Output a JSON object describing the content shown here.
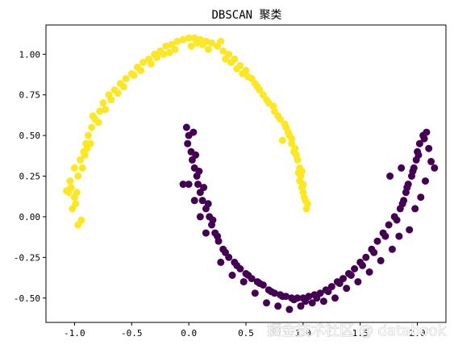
{
  "chart_data": {
    "type": "scatter",
    "title": "DBSCAN 聚类",
    "xlabel": "",
    "ylabel": "",
    "xlim": [
      -1.25,
      2.25
    ],
    "ylim": [
      -0.65,
      1.18
    ],
    "xticks": [
      -1.0,
      -0.5,
      0.0,
      0.5,
      1.0,
      1.5,
      2.0
    ],
    "xtick_labels": [
      "-1.0",
      "-0.5",
      "0.0",
      "0.5",
      "1.0",
      "1.5",
      "2.0"
    ],
    "yticks": [
      -0.5,
      -0.25,
      0.0,
      0.25,
      0.5,
      0.75,
      1.0
    ],
    "ytick_labels": [
      "-0.50",
      "-0.25",
      "0.00",
      "0.25",
      "0.50",
      "0.75",
      "1.00"
    ],
    "grid": false,
    "legend": "none",
    "series": [
      {
        "color": "#fde725",
        "points": [
          [
            -1.02,
            0.05
          ],
          [
            -1.0,
            0.12
          ],
          [
            -0.98,
            0.15
          ],
          [
            -1.03,
            0.18
          ],
          [
            -0.97,
            0.25
          ],
          [
            -1.0,
            0.3
          ],
          [
            -0.95,
            0.35
          ],
          [
            -0.92,
            0.4
          ],
          [
            -0.9,
            0.45
          ],
          [
            -0.88,
            0.5
          ],
          [
            -0.85,
            0.55
          ],
          [
            -0.82,
            0.6
          ],
          [
            -0.78,
            0.65
          ],
          [
            -0.75,
            0.7
          ],
          [
            -0.7,
            0.75
          ],
          [
            -0.65,
            0.78
          ],
          [
            -0.6,
            0.82
          ],
          [
            -0.55,
            0.85
          ],
          [
            -0.5,
            0.88
          ],
          [
            -0.45,
            0.92
          ],
          [
            -0.4,
            0.95
          ],
          [
            -0.35,
            0.97
          ],
          [
            -0.3,
            1.0
          ],
          [
            -0.25,
            1.02
          ],
          [
            -0.2,
            1.05
          ],
          [
            -0.15,
            1.06
          ],
          [
            -0.1,
            1.08
          ],
          [
            -0.05,
            1.09
          ],
          [
            0.0,
            1.1
          ],
          [
            0.05,
            1.1
          ],
          [
            0.1,
            1.09
          ],
          [
            0.15,
            1.08
          ],
          [
            0.2,
            1.07
          ],
          [
            0.25,
            1.05
          ],
          [
            0.3,
            1.02
          ],
          [
            0.35,
            1.0
          ],
          [
            0.4,
            0.97
          ],
          [
            0.45,
            0.93
          ],
          [
            0.5,
            0.9
          ],
          [
            0.55,
            0.85
          ],
          [
            0.6,
            0.8
          ],
          [
            0.65,
            0.75
          ],
          [
            0.7,
            0.7
          ],
          [
            0.75,
            0.65
          ],
          [
            0.8,
            0.6
          ],
          [
            0.85,
            0.55
          ],
          [
            0.88,
            0.5
          ],
          [
            0.9,
            0.45
          ],
          [
            0.92,
            0.4
          ],
          [
            0.95,
            0.35
          ],
          [
            0.97,
            0.3
          ],
          [
            0.98,
            0.25
          ],
          [
            1.0,
            0.2
          ],
          [
            1.0,
            0.15
          ],
          [
            1.02,
            0.1
          ],
          [
            1.03,
            0.05
          ],
          [
            -1.05,
            0.15
          ],
          [
            -0.93,
            0.3
          ],
          [
            -0.86,
            0.45
          ],
          [
            -0.79,
            0.58
          ],
          [
            -0.68,
            0.72
          ],
          [
            -0.57,
            0.8
          ],
          [
            -0.42,
            0.9
          ],
          [
            -0.28,
            0.98
          ],
          [
            -0.12,
            1.03
          ],
          [
            0.02,
            1.05
          ],
          [
            0.17,
            1.03
          ],
          [
            0.32,
            0.97
          ],
          [
            0.47,
            0.88
          ],
          [
            0.62,
            0.78
          ],
          [
            0.74,
            0.68
          ],
          [
            0.84,
            0.57
          ],
          [
            0.9,
            0.48
          ],
          [
            0.94,
            0.38
          ],
          [
            0.96,
            0.27
          ],
          [
            0.99,
            0.18
          ],
          [
            -0.99,
            0.08
          ],
          [
            -0.91,
            0.38
          ],
          [
            -0.73,
            0.66
          ],
          [
            -0.48,
            0.87
          ],
          [
            -0.22,
            1.0
          ],
          [
            0.07,
            1.07
          ],
          [
            0.37,
            0.95
          ],
          [
            0.58,
            0.82
          ],
          [
            0.78,
            0.62
          ],
          [
            0.93,
            0.42
          ],
          [
            1.01,
            0.12
          ],
          [
            -1.07,
            0.16
          ],
          [
            -0.89,
            0.42
          ],
          [
            -0.62,
            0.76
          ],
          [
            -0.33,
            0.94
          ],
          [
            0.12,
            1.06
          ],
          [
            0.42,
            0.91
          ],
          [
            0.68,
            0.72
          ],
          [
            0.87,
            0.52
          ],
          [
            0.97,
            0.22
          ],
          [
            -0.94,
            -0.02
          ],
          [
            -0.97,
            -0.05
          ],
          [
            -0.84,
            0.62
          ],
          [
            0.28,
            1.08
          ],
          [
            -0.17,
            1.01
          ],
          [
            0.52,
            0.86
          ],
          [
            0.82,
            0.47
          ],
          [
            0.99,
            0.28
          ],
          [
            1.04,
            0.08
          ],
          [
            -1.04,
            0.22
          ]
        ]
      },
      {
        "color": "#440154",
        "points": [
          [
            -0.02,
            0.55
          ],
          [
            0.0,
            0.5
          ],
          [
            -0.01,
            0.45
          ],
          [
            0.02,
            0.4
          ],
          [
            0.03,
            0.35
          ],
          [
            0.05,
            0.3
          ],
          [
            0.07,
            0.25
          ],
          [
            0.08,
            0.2
          ],
          [
            0.1,
            0.15
          ],
          [
            0.12,
            0.1
          ],
          [
            0.15,
            0.05
          ],
          [
            0.18,
            0.0
          ],
          [
            0.2,
            -0.05
          ],
          [
            0.23,
            -0.1
          ],
          [
            0.26,
            -0.15
          ],
          [
            0.3,
            -0.2
          ],
          [
            0.35,
            -0.25
          ],
          [
            0.4,
            -0.28
          ],
          [
            0.45,
            -0.32
          ],
          [
            0.5,
            -0.35
          ],
          [
            0.55,
            -0.38
          ],
          [
            0.6,
            -0.4
          ],
          [
            0.65,
            -0.42
          ],
          [
            0.7,
            -0.45
          ],
          [
            0.75,
            -0.47
          ],
          [
            0.8,
            -0.48
          ],
          [
            0.85,
            -0.49
          ],
          [
            0.9,
            -0.5
          ],
          [
            0.95,
            -0.5
          ],
          [
            1.0,
            -0.5
          ],
          [
            1.05,
            -0.49
          ],
          [
            1.1,
            -0.48
          ],
          [
            1.15,
            -0.47
          ],
          [
            1.2,
            -0.45
          ],
          [
            1.25,
            -0.43
          ],
          [
            1.3,
            -0.4
          ],
          [
            1.35,
            -0.38
          ],
          [
            1.4,
            -0.35
          ],
          [
            1.45,
            -0.32
          ],
          [
            1.5,
            -0.28
          ],
          [
            1.55,
            -0.25
          ],
          [
            1.6,
            -0.2
          ],
          [
            1.65,
            -0.15
          ],
          [
            1.7,
            -0.1
          ],
          [
            1.75,
            -0.05
          ],
          [
            1.8,
            0.0
          ],
          [
            1.85,
            0.05
          ],
          [
            1.88,
            0.1
          ],
          [
            1.9,
            0.15
          ],
          [
            1.92,
            0.2
          ],
          [
            1.95,
            0.25
          ],
          [
            1.97,
            0.3
          ],
          [
            1.99,
            0.35
          ],
          [
            2.0,
            0.4
          ],
          [
            2.02,
            0.45
          ],
          [
            2.05,
            0.5
          ],
          [
            0.04,
            0.52
          ],
          [
            0.06,
            0.38
          ],
          [
            0.09,
            0.28
          ],
          [
            0.13,
            0.18
          ],
          [
            0.17,
            0.08
          ],
          [
            0.21,
            -0.02
          ],
          [
            0.25,
            -0.12
          ],
          [
            0.32,
            -0.22
          ],
          [
            0.42,
            -0.3
          ],
          [
            0.52,
            -0.36
          ],
          [
            0.62,
            -0.41
          ],
          [
            0.72,
            -0.46
          ],
          [
            0.82,
            -0.49
          ],
          [
            0.92,
            -0.51
          ],
          [
            1.02,
            -0.52
          ],
          [
            1.12,
            -0.5
          ],
          [
            1.22,
            -0.46
          ],
          [
            1.32,
            -0.41
          ],
          [
            1.42,
            -0.36
          ],
          [
            1.52,
            -0.3
          ],
          [
            1.62,
            -0.22
          ],
          [
            1.72,
            -0.12
          ],
          [
            1.82,
            -0.02
          ],
          [
            1.87,
            0.08
          ],
          [
            1.91,
            0.18
          ],
          [
            1.96,
            0.28
          ],
          [
            2.01,
            0.38
          ],
          [
            2.06,
            0.48
          ],
          [
            2.1,
            0.42
          ],
          [
            2.15,
            0.3
          ],
          [
            -0.05,
            0.2
          ],
          [
            0.0,
            0.2
          ],
          [
            0.05,
            0.1
          ],
          [
            0.1,
            0.0
          ],
          [
            0.15,
            -0.1
          ],
          [
            0.28,
            -0.28
          ],
          [
            0.38,
            -0.36
          ],
          [
            0.48,
            -0.4
          ],
          [
            0.58,
            -0.47
          ],
          [
            0.68,
            -0.53
          ],
          [
            0.78,
            -0.55
          ],
          [
            0.88,
            -0.57
          ],
          [
            0.98,
            -0.55
          ],
          [
            1.08,
            -0.53
          ],
          [
            1.18,
            -0.52
          ],
          [
            1.28,
            -0.5
          ],
          [
            1.38,
            -0.44
          ],
          [
            1.48,
            -0.4
          ],
          [
            1.58,
            -0.34
          ],
          [
            1.68,
            -0.27
          ],
          [
            1.78,
            -0.2
          ],
          [
            1.84,
            -0.12
          ],
          [
            1.93,
            -0.08
          ],
          [
            1.98,
            0.05
          ],
          [
            2.03,
            0.12
          ],
          [
            2.07,
            0.22
          ],
          [
            2.12,
            0.34
          ],
          [
            1.86,
            0.3
          ],
          [
            1.76,
            0.25
          ],
          [
            2.08,
            0.52
          ]
        ]
      }
    ]
  },
  "watermark": "掘金技术社区 @ databook"
}
